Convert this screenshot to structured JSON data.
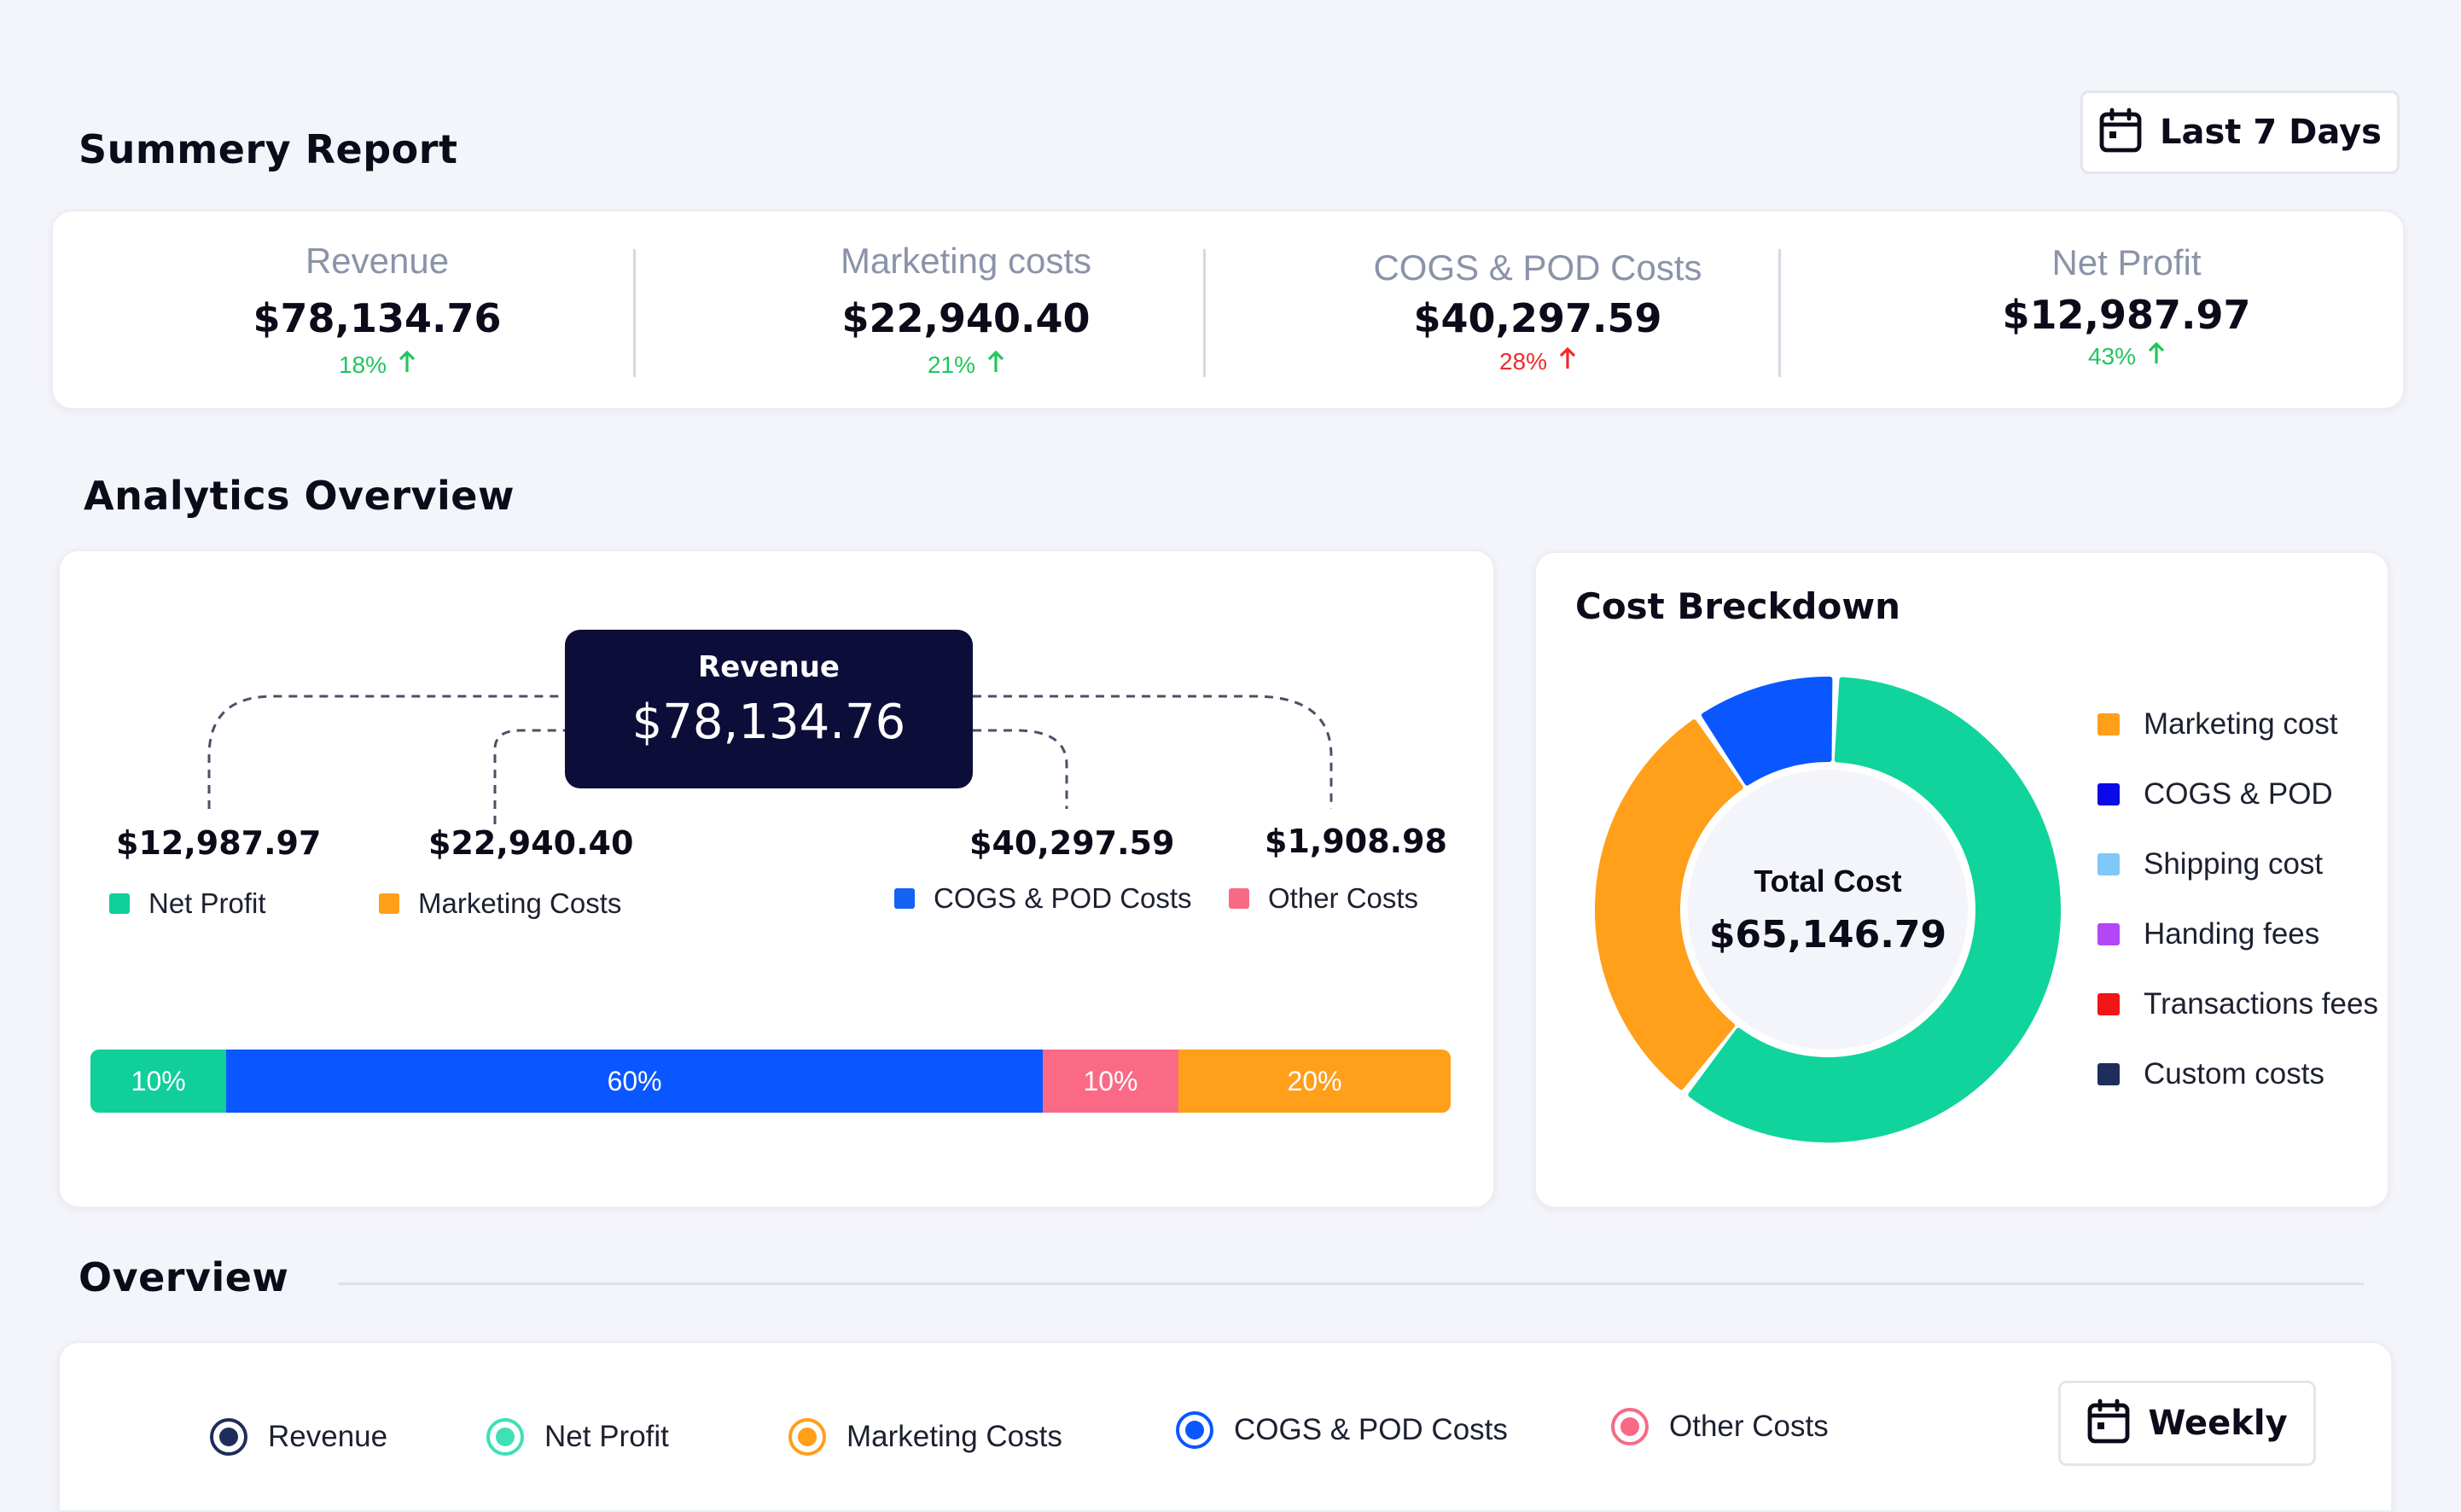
{
  "summary": {
    "title": "Summery  Report",
    "date_filter": "Last 7 Days",
    "kpis": [
      {
        "label": "Revenue",
        "value": "$78,134.76",
        "change": "18%",
        "trend": "up",
        "color": "#22c55e"
      },
      {
        "label": "Marketing costs",
        "value": "$22,940.40",
        "change": "21%",
        "trend": "up",
        "color": "#22c55e"
      },
      {
        "label": "COGS & POD Costs",
        "value": "$40,297.59",
        "change": "28%",
        "trend": "up",
        "color": "#ef2b2b"
      },
      {
        "label": "Net Profit",
        "value": "$12,987.97",
        "change": "43%",
        "trend": "up",
        "color": "#22c55e"
      }
    ]
  },
  "analytics": {
    "title": "Analytics  Overview",
    "revenue_label": "Revenue",
    "revenue_value": "$78,134.76",
    "items": [
      {
        "amount": "$12,987.97",
        "label": "Net Profit",
        "color": "#10cf9a"
      },
      {
        "amount": "$22,940.40",
        "label": "Marketing Costs",
        "color": "#ff9f1a"
      },
      {
        "amount": "$40,297.59",
        "label": "COGS & POD Costs",
        "color": "#1463f3"
      },
      {
        "amount": "$1,908.98",
        "label": "Other Costs",
        "color": "#f76a85"
      }
    ],
    "bar": [
      {
        "label": "10%",
        "pct": 10,
        "color": "#10cf9a"
      },
      {
        "label": "60%",
        "pct": 60,
        "color": "#0b57ff"
      },
      {
        "label": "10%",
        "pct": 10,
        "color": "#fb6a85"
      },
      {
        "label": "20%",
        "pct": 20,
        "color": "#ff9f1a"
      }
    ]
  },
  "cost_breakdown": {
    "title": "Cost Breckdown",
    "center_label": "Total Cost",
    "center_value": "$65,146.79",
    "legend": [
      {
        "label": "Marketing cost",
        "color": "#ff9f1a"
      },
      {
        "label": "COGS & POD",
        "color": "#0a0ae6"
      },
      {
        "label": "Shipping cost",
        "color": "#7fc8f8"
      },
      {
        "label": "Handing fees",
        "color": "#b447f5"
      },
      {
        "label": "Transactions fees",
        "color": "#f21515"
      },
      {
        "label": "Custom costs",
        "color": "#1f2d5c"
      }
    ],
    "chart_data": {
      "type": "pie",
      "categories": [
        "Marketing cost",
        "COGS & POD",
        "Shipping cost",
        "Handing fees",
        "Transactions fees",
        "Custom costs"
      ],
      "values": [
        30,
        10,
        60,
        0,
        0,
        0
      ],
      "colors": [
        "#ff9f1a",
        "#0b57ff",
        "#10d49c",
        "#b447f5",
        "#f21515",
        "#1f2d5c"
      ]
    }
  },
  "overview": {
    "title": "Overview",
    "period_button": "Weekly",
    "legend": [
      {
        "label": "Revenue",
        "color": "#1f2d5c"
      },
      {
        "label": "Net Profit",
        "color": "#3ee0b5"
      },
      {
        "label": "Marketing Costs",
        "color": "#ff9f1a"
      },
      {
        "label": "COGS & POD Costs",
        "color": "#0b57ff"
      },
      {
        "label": "Other Costs",
        "color": "#f76a85"
      }
    ]
  }
}
